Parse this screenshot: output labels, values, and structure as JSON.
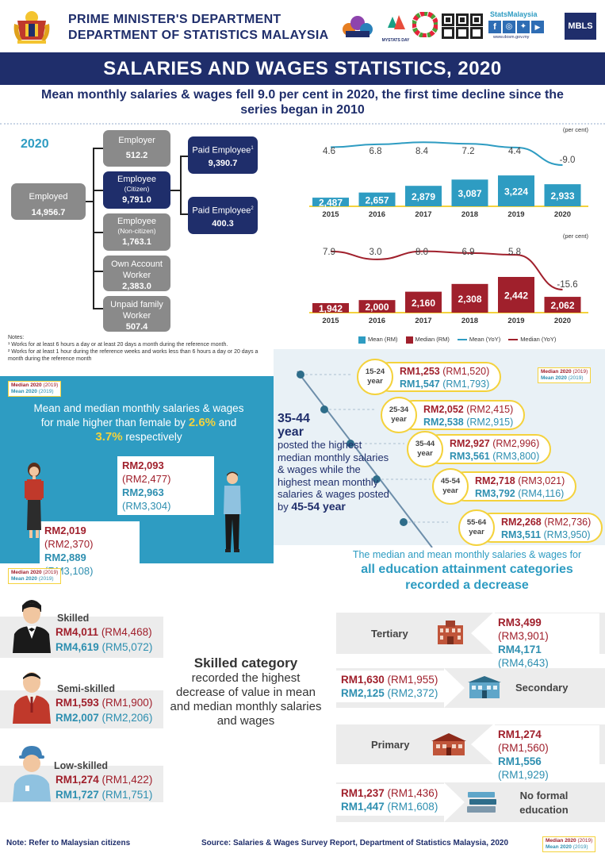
{
  "header": {
    "line1": "PRIME MINISTER'S DEPARTMENT",
    "line2": "DEPARTMENT OF STATISTICS MALAYSIA",
    "statsmalaysia": "StatsMalaysia",
    "website": "www.dosm.gov.my",
    "mbls": "MBLS",
    "mystats": "MYSTATS DAY"
  },
  "title": "SALARIES AND WAGES STATISTICS, 2020",
  "subtitle": "Mean monthly salaries & wages fell 9.0 per cent in 2020, the first time decline since the series began in 2010",
  "employment": {
    "year": "2020",
    "employed": {
      "label": "Employed",
      "value": "14,956.7"
    },
    "employer": {
      "label": "Employer",
      "value": "512.2"
    },
    "employee_citizen": {
      "label": "Employee",
      "sub": "(Citizen)",
      "value": "9,791.0"
    },
    "employee_noncitizen": {
      "label": "Employee",
      "sub": "(Non-citizen)",
      "value": "1,763.1"
    },
    "own_account": {
      "label1": "Own Account",
      "label2": "Worker",
      "value": "2,383.0"
    },
    "unpaid": {
      "label1": "Unpaid family",
      "label2": "Worker",
      "value": "507.4"
    },
    "paid1": {
      "label": "Paid Employee",
      "sup": "1",
      "value": "9,390.7"
    },
    "paid2": {
      "label": "Paid Employee",
      "sup": "2",
      "value": "400.3"
    },
    "notes_title": "Notes:",
    "note1": "¹ Works for at least 6 hours a day or at least 20 days a month during the reference month.",
    "note2": "² Works for at least 1 hour during the reference weeks and works less than 6 hours a day or 20 days a month during the reference month"
  },
  "chart_data": [
    {
      "type": "bar",
      "categories": [
        "2015",
        "2016",
        "2017",
        "2018",
        "2019",
        "2020"
      ],
      "series": [
        {
          "name": "Mean (RM)",
          "values": [
            2487,
            2657,
            2879,
            3087,
            3224,
            2933
          ],
          "labels": [
            "2,487",
            "2,657",
            "2,879",
            "3,087",
            "3,224",
            "2,933"
          ],
          "color": "#2e9cc2"
        },
        {
          "name": "Mean (YoY)",
          "values": [
            4.6,
            6.8,
            8.4,
            7.2,
            4.4,
            -9.0
          ],
          "labels": [
            "4.6",
            "6.8",
            "8.4",
            "7.2",
            "4.4",
            "-9.0"
          ],
          "color": "#2e9cc2"
        }
      ],
      "unit_label": "(per cent)"
    },
    {
      "type": "bar",
      "categories": [
        "2015",
        "2016",
        "2017",
        "2018",
        "2019",
        "2020"
      ],
      "series": [
        {
          "name": "Median (RM)",
          "values": [
            1942,
            2000,
            2160,
            2308,
            2442,
            2062
          ],
          "labels": [
            "1,942",
            "2,000",
            "2,160",
            "2,308",
            "2,442",
            "2,062"
          ],
          "color": "#a0202c"
        },
        {
          "name": "Median (YoY)",
          "values": [
            7.9,
            3.0,
            8.0,
            6.9,
            5.8,
            -15.6
          ],
          "labels": [
            "7.9",
            "3.0",
            "8.0",
            "6.9",
            "5.8",
            "-15.6"
          ],
          "color": "#a0202c"
        }
      ],
      "unit_label": "(per cent)"
    }
  ],
  "legend": {
    "mean_rm": "Mean (RM)",
    "median_rm": "Median (RM)",
    "mean_yoy": "Mean (YoY)",
    "median_yoy": "Median (YoY)"
  },
  "key": {
    "median": "Median 2020",
    "median_prev": "(2019)",
    "mean": "Mean 2020",
    "mean_prev": "(2019)"
  },
  "gender": {
    "text1": "Mean and median monthly salaries & wages for male higher than female by",
    "p1": "2.6%",
    "and": "and",
    "p2": "3.7%",
    "resp": "respectively",
    "male_median": "RM2,093",
    "male_median_prev": "(RM2,477)",
    "male_mean": "RM2,963",
    "male_mean_prev": "(RM3,304)",
    "female_median": "RM2,019",
    "female_median_prev": "(RM2,370)",
    "female_mean": "RM2,889",
    "female_mean_prev": "(RM3,108)"
  },
  "age": {
    "headline1": "35-44",
    "headline2": "year",
    "text": "posted the highest median monthly salaries & wages while the highest mean monthly salaries & wages posted",
    "by": "by",
    "mean_group": "45-54 year",
    "groups": [
      {
        "l1": "15-24",
        "l2": "year",
        "median": "RM1,253",
        "median_prev": "(RM1,520)",
        "mean": "RM1,547",
        "mean_prev": "(RM1,793)"
      },
      {
        "l1": "25-34",
        "l2": "year",
        "median": "RM2,052",
        "median_prev": "(RM2,415)",
        "mean": "RM2,538",
        "mean_prev": "(RM2,915)"
      },
      {
        "l1": "35-44",
        "l2": "year",
        "median": "RM2,927",
        "median_prev": "(RM2,996)",
        "mean": "RM3,561",
        "mean_prev": "(RM3,800)"
      },
      {
        "l1": "45-54",
        "l2": "year",
        "median": "RM2,718",
        "median_prev": "(RM3,021)",
        "mean": "RM3,792",
        "mean_prev": "(RM4,116)"
      },
      {
        "l1": "55-64",
        "l2": "year",
        "median": "RM2,268",
        "median_prev": "(RM2,736)",
        "mean": "RM3,511",
        "mean_prev": "(RM3,950)"
      }
    ]
  },
  "skill": {
    "headline": "Skilled category",
    "text": "recorded the highest decrease of value in mean and median monthly salaries and wages",
    "groups": [
      {
        "label": "Skilled",
        "median": "RM4,011",
        "median_prev": "(RM4,468)",
        "mean": "RM4,619",
        "mean_prev": "(RM5,072)"
      },
      {
        "label": "Semi-skilled",
        "median": "RM1,593",
        "median_prev": "(RM1,900)",
        "mean": "RM2,007",
        "mean_prev": "(RM2,206)"
      },
      {
        "label": "Low-skilled",
        "median": "RM1,274",
        "median_prev": "(RM1,422)",
        "mean": "RM1,727",
        "mean_prev": "(RM1,751)"
      }
    ]
  },
  "education": {
    "intro": "The median and mean monthly salaries & wages for",
    "bold1": "all education attainment categories",
    "bold2": "recorded a decrease",
    "groups": [
      {
        "label": "Tertiary",
        "median": "RM3,499",
        "median_prev": "(RM3,901)",
        "mean": "RM4,171",
        "mean_prev": "(RM4,643)"
      },
      {
        "label": "Secondary",
        "median": "RM1,630",
        "median_prev": "(RM1,955)",
        "mean": "RM2,125",
        "mean_prev": "(RM2,372)"
      },
      {
        "label": "Primary",
        "median": "RM1,274",
        "median_prev": "(RM1,560)",
        "mean": "RM1,556",
        "mean_prev": "(RM1,929)"
      },
      {
        "label1": "No formal",
        "label2": "education",
        "median": "RM1,237",
        "median_prev": "(RM1,436)",
        "mean": "RM1,447",
        "mean_prev": "(RM1,608)"
      }
    ]
  },
  "footer": {
    "note": "Note: Refer to Malaysian citizens",
    "source": "Source: Salaries & Wages Survey Report, Department of Statistics Malaysia, 2020"
  },
  "colors": {
    "navy": "#1f2e6b",
    "teal": "#2e9cc2",
    "red": "#a0202c",
    "yellow": "#f4d23c",
    "grey": "#8a8a8a"
  }
}
